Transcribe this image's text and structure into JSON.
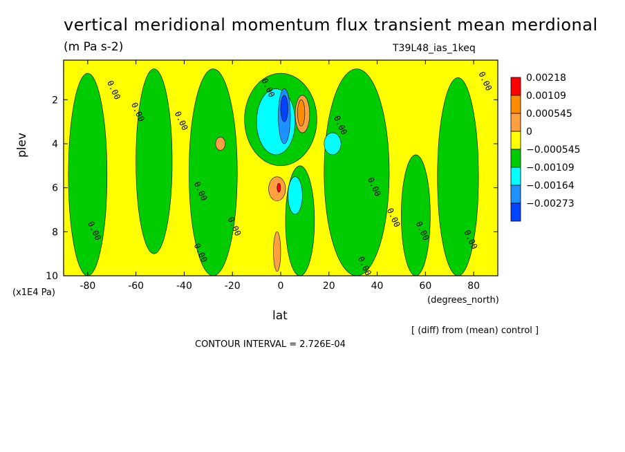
{
  "chart_data": {
    "type": "heatmap",
    "title": "vertical meridional momentum flux transient mean merdional",
    "subtitle": "(m Pa s-2)",
    "run_label": "T39L48_ias_1keq",
    "xlabel": "lat",
    "x_unit": "(degrees_north)",
    "ylabel": "plev",
    "y_unit": "(x1E4 Pa)",
    "xlim": [
      -90,
      90
    ],
    "ylim": [
      10,
      0.2
    ],
    "x_ticks": [
      "-80",
      "-60",
      "-40",
      "-20",
      "0",
      "20",
      "40",
      "60",
      "80"
    ],
    "x_tick_values": [
      -80,
      -60,
      -40,
      -20,
      0,
      20,
      40,
      60,
      80
    ],
    "y_ticks": [
      "2",
      "4",
      "6",
      "8",
      "10"
    ],
    "y_tick_values": [
      2,
      4,
      6,
      8,
      10
    ],
    "note": "[ (diff) from (mean) control ]",
    "contour_interval": "CONTOUR INTERVAL = 2.726E-04",
    "contour_label": "0.00",
    "legend": {
      "placement": "right",
      "labels": [
        "0.00218",
        "0.00109",
        "0.000545",
        "0",
        "−0.000545",
        "−0.00109",
        "−0.00164",
        "−0.00273"
      ],
      "colors": [
        "#ff0000",
        "#ff8c00",
        "#ffa040",
        "#ffff00",
        "#00cc00",
        "#00ffff",
        "#1e90ff",
        "#0044ff"
      ]
    },
    "base_color": "#ffff00",
    "regions": [
      {
        "level": "negative_weak",
        "color": "#00cc00",
        "lat": [
          -88,
          -72
        ],
        "plev": [
          0.8,
          10
        ]
      },
      {
        "level": "negative_weak",
        "color": "#00cc00",
        "lat": [
          -60,
          -45
        ],
        "plev": [
          0.6,
          9
        ]
      },
      {
        "level": "negative_weak",
        "color": "#00cc00",
        "lat": [
          -38,
          -18
        ],
        "plev": [
          0.6,
          10
        ]
      },
      {
        "level": "negative_weak",
        "color": "#00cc00",
        "lat": [
          -15,
          15
        ],
        "plev": [
          0.8,
          5
        ]
      },
      {
        "level": "negative_weak",
        "color": "#00cc00",
        "lat": [
          2,
          14
        ],
        "plev": [
          5,
          10
        ]
      },
      {
        "level": "negative_weak",
        "color": "#00cc00",
        "lat": [
          18,
          45
        ],
        "plev": [
          0.6,
          10
        ]
      },
      {
        "level": "negative_weak",
        "color": "#00cc00",
        "lat": [
          50,
          62
        ],
        "plev": [
          4.5,
          10
        ]
      },
      {
        "level": "negative_weak",
        "color": "#00cc00",
        "lat": [
          65,
          82
        ],
        "plev": [
          1,
          10
        ]
      },
      {
        "level": "negative_mid",
        "color": "#00ffff",
        "lat": [
          -10,
          6
        ],
        "plev": [
          1.5,
          4.5
        ]
      },
      {
        "level": "negative_mid",
        "color": "#00ffff",
        "lat": [
          18,
          25
        ],
        "plev": [
          3.5,
          4.5
        ]
      },
      {
        "level": "negative_mid",
        "color": "#00ffff",
        "lat": [
          3,
          9
        ],
        "plev": [
          5.5,
          7.2
        ]
      },
      {
        "level": "negative_strong",
        "color": "#1e90ff",
        "lat": [
          -1,
          4
        ],
        "plev": [
          1.5,
          4
        ]
      },
      {
        "level": "negative_max",
        "color": "#0044ff",
        "lat": [
          0,
          3
        ],
        "plev": [
          1.8,
          3
        ]
      },
      {
        "level": "positive_weak",
        "color": "#ffa040",
        "lat": [
          6,
          12
        ],
        "plev": [
          1.8,
          3.5
        ]
      },
      {
        "level": "positive_weak",
        "color": "#ffa040",
        "lat": [
          -27,
          -23
        ],
        "plev": [
          3.7,
          4.3
        ]
      },
      {
        "level": "positive_weak",
        "color": "#ffa040",
        "lat": [
          -5,
          2
        ],
        "plev": [
          5.5,
          6.6
        ]
      },
      {
        "level": "positive_weak",
        "color": "#ffa040",
        "lat": [
          -3,
          0
        ],
        "plev": [
          8,
          9.8
        ]
      },
      {
        "level": "positive_mid",
        "color": "#ff8c00",
        "lat": [
          7,
          10
        ],
        "plev": [
          2,
          3.2
        ]
      },
      {
        "level": "positive_max",
        "color": "#ff0000",
        "lat": [
          -1.5,
          0
        ],
        "plev": [
          5.8,
          6.2
        ]
      }
    ]
  }
}
